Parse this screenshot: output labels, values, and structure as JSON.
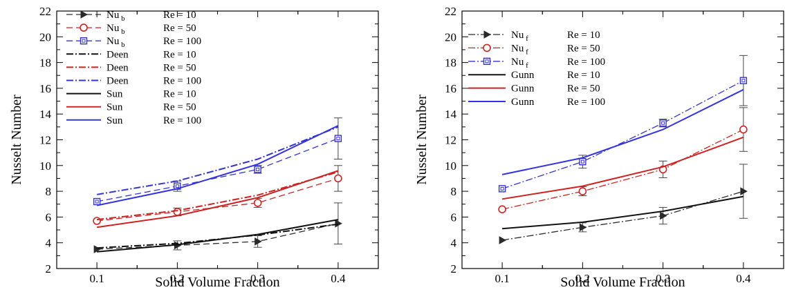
{
  "chart_data": [
    {
      "type": "line",
      "xlabel": "Solid Volume Fraction",
      "ylabel": "Nusselt Number",
      "xlim": [
        0.05,
        0.45
      ],
      "ylim": [
        2,
        22
      ],
      "xticks": [
        "0.1",
        "0.2",
        "0.3",
        "0.4"
      ],
      "yticks": [
        "2",
        "4",
        "6",
        "8",
        "10",
        "12",
        "14",
        "16",
        "18",
        "20",
        "22"
      ],
      "legend_position": "top-left",
      "series": [
        {
          "name": "Nu_b Re = 10",
          "label_main": "Nu",
          "label_sub": "b",
          "label_rest": "Re = 10",
          "color": "#2a2a2a",
          "dash": "9,5",
          "marker": "triangle",
          "x": [
            0.1,
            0.2,
            0.3,
            0.4
          ],
          "y": [
            3.5,
            3.8,
            4.1,
            5.5
          ],
          "err": [
            0,
            0.35,
            0.45,
            1.6
          ]
        },
        {
          "name": "Nu_b Re = 50",
          "label_main": "Nu",
          "label_sub": "b",
          "label_rest": "Re = 50",
          "color": "#cc2222",
          "dash": "9,5",
          "marker": "circle",
          "x": [
            0.1,
            0.2,
            0.3,
            0.4
          ],
          "y": [
            5.7,
            6.4,
            7.1,
            9.0
          ],
          "err": [
            0,
            0.3,
            0.35,
            1.0
          ]
        },
        {
          "name": "Nu_b Re = 100",
          "label_main": "Nu",
          "label_sub": "b",
          "label_rest": "Re = 100",
          "color": "#3333cc",
          "dash": "9,5",
          "marker": "square",
          "x": [
            0.1,
            0.2,
            0.3,
            0.4
          ],
          "y": [
            7.2,
            8.4,
            9.7,
            12.1
          ],
          "err": [
            0,
            0.4,
            0.3,
            1.6
          ]
        },
        {
          "name": "Deen Re = 10",
          "label_main": "Deen",
          "label_sub": "",
          "label_rest": "Re = 10",
          "color": "#111111",
          "dash": "10,3,2,3",
          "width": 2,
          "marker": "none",
          "x": [
            0.1,
            0.2,
            0.3,
            0.4
          ],
          "y": [
            3.6,
            3.95,
            4.6,
            5.45
          ]
        },
        {
          "name": "Deen Re = 50",
          "label_main": "Deen",
          "label_sub": "",
          "label_rest": "Re = 50",
          "color": "#cc2222",
          "dash": "10,3,2,3",
          "width": 2,
          "marker": "none",
          "x": [
            0.1,
            0.2,
            0.3,
            0.4
          ],
          "y": [
            5.8,
            6.5,
            7.7,
            9.5
          ]
        },
        {
          "name": "Deen Re = 100",
          "label_main": "Deen",
          "label_sub": "",
          "label_rest": "Re = 100",
          "color": "#3333cc",
          "dash": "10,3,2,3",
          "width": 2,
          "marker": "none",
          "x": [
            0.1,
            0.2,
            0.3,
            0.4
          ],
          "y": [
            7.75,
            8.8,
            10.5,
            13.0
          ]
        },
        {
          "name": "Sun Re = 10",
          "label_main": "Sun",
          "label_sub": "",
          "label_rest": "Re = 10",
          "color": "#111111",
          "dash": "",
          "width": 2,
          "marker": "none",
          "x": [
            0.1,
            0.2,
            0.3,
            0.4
          ],
          "y": [
            3.3,
            3.85,
            4.65,
            5.8
          ]
        },
        {
          "name": "Sun Re = 50",
          "label_main": "Sun",
          "label_sub": "",
          "label_rest": "Re = 50",
          "color": "#cc2222",
          "dash": "",
          "width": 2,
          "marker": "none",
          "x": [
            0.1,
            0.2,
            0.3,
            0.4
          ],
          "y": [
            5.2,
            6.1,
            7.5,
            9.6
          ]
        },
        {
          "name": "Sun Re = 100",
          "label_main": "Sun",
          "label_sub": "",
          "label_rest": "Re = 100",
          "color": "#3333dd",
          "dash": "",
          "width": 2,
          "marker": "none",
          "x": [
            0.1,
            0.2,
            0.3,
            0.4
          ],
          "y": [
            6.9,
            8.2,
            10.1,
            13.1
          ]
        }
      ]
    },
    {
      "type": "line",
      "xlabel": "Solid Volume Fraction",
      "ylabel": "Nusselt Number",
      "xlim": [
        0.05,
        0.45
      ],
      "ylim": [
        2,
        22
      ],
      "xticks": [
        "0.1",
        "0.2",
        "0.3",
        "0.4"
      ],
      "yticks": [
        "2",
        "4",
        "6",
        "8",
        "10",
        "12",
        "14",
        "16",
        "18",
        "20",
        "22"
      ],
      "legend_position": "top-left",
      "series": [
        {
          "name": "Nu_f Re = 10",
          "label_main": "Nu",
          "label_sub": "f",
          "label_rest": "Re = 10",
          "color": "#2a2a2a",
          "dash": "10,3,2,3",
          "marker": "triangle",
          "x": [
            0.1,
            0.2,
            0.3,
            0.4
          ],
          "y": [
            4.2,
            5.2,
            6.1,
            8.0
          ],
          "err": [
            0,
            0.35,
            0.65,
            2.1
          ]
        },
        {
          "name": "Nu_f Re = 50",
          "label_main": "Nu",
          "label_sub": "f",
          "label_rest": "Re = 50",
          "color": "#cc2222",
          "dash": "10,3,2,3",
          "marker": "circle",
          "x": [
            0.1,
            0.2,
            0.3,
            0.4
          ],
          "y": [
            6.6,
            8.0,
            9.7,
            12.8
          ],
          "err": [
            0,
            0.35,
            0.65,
            1.7
          ]
        },
        {
          "name": "Nu_f Re = 100",
          "label_main": "Nu",
          "label_sub": "f",
          "label_rest": "Re = 100",
          "color": "#3333cc",
          "dash": "10,3,2,3",
          "marker": "square",
          "x": [
            0.1,
            0.2,
            0.3,
            0.4
          ],
          "y": [
            8.2,
            10.3,
            13.3,
            16.6
          ],
          "err": [
            0,
            0.5,
            0.3,
            1.95
          ]
        },
        {
          "name": "Gunn Re = 10",
          "label_main": "Gunn",
          "label_sub": "",
          "label_rest": "Re = 10",
          "color": "#111111",
          "dash": "",
          "width": 2,
          "marker": "none",
          "x": [
            0.1,
            0.2,
            0.3,
            0.4
          ],
          "y": [
            5.1,
            5.6,
            6.45,
            7.6
          ]
        },
        {
          "name": "Gunn Re = 50",
          "label_main": "Gunn",
          "label_sub": "",
          "label_rest": "Re = 50",
          "color": "#cc2222",
          "dash": "",
          "width": 2,
          "marker": "none",
          "x": [
            0.1,
            0.2,
            0.3,
            0.4
          ],
          "y": [
            7.4,
            8.4,
            9.9,
            12.2
          ]
        },
        {
          "name": "Gunn Re = 100",
          "label_main": "Gunn",
          "label_sub": "",
          "label_rest": "Re = 100",
          "color": "#3333dd",
          "dash": "",
          "width": 2,
          "marker": "none",
          "x": [
            0.1,
            0.2,
            0.3,
            0.4
          ],
          "y": [
            9.3,
            10.6,
            12.8,
            15.9
          ]
        }
      ]
    }
  ]
}
